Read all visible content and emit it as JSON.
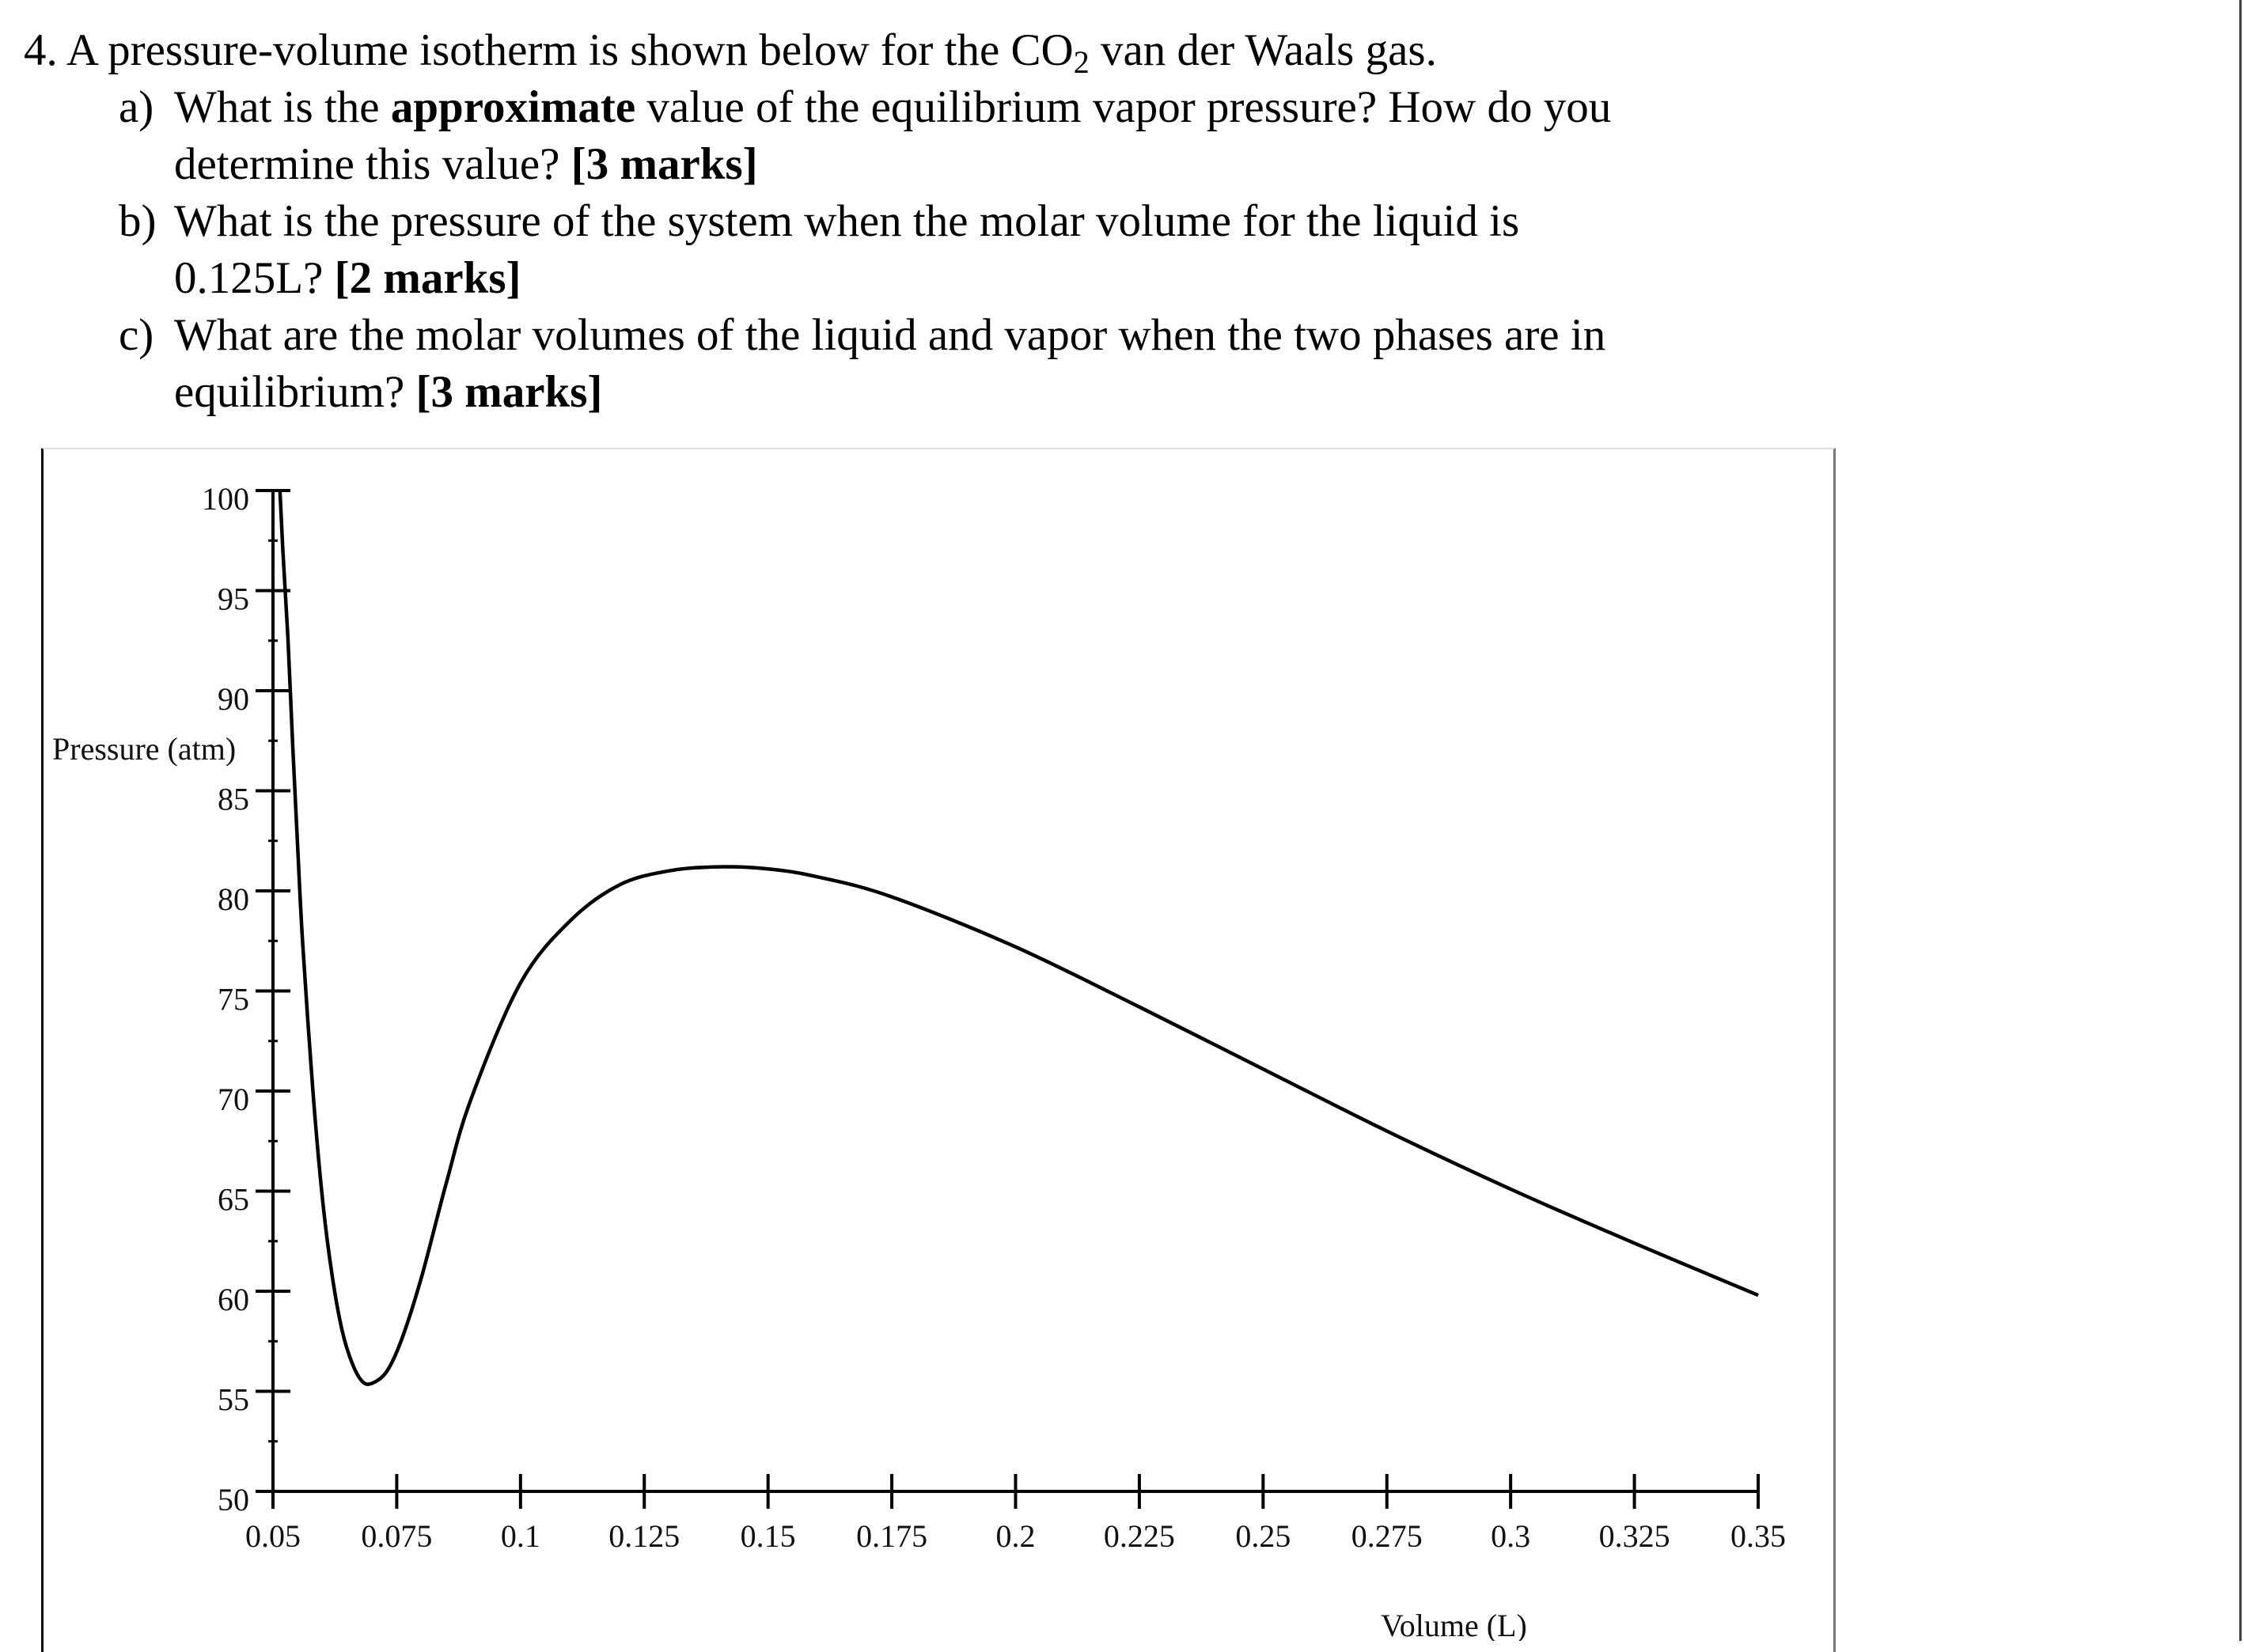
{
  "question": {
    "number": "4.",
    "intro_before_sub": "A pressure-volume isotherm is shown below for the CO",
    "intro_sub": "2",
    "intro_after_sub": " van der Waals gas.",
    "parts": [
      {
        "letter": "a)",
        "line1_text": "What is the ",
        "line1_bold": "approximate",
        "line1_rest": " value of the equilibrium vapor pressure? How do you",
        "line2_text": "determine this value? ",
        "line2_bold": "[3 marks]"
      },
      {
        "letter": "b)",
        "line1_text": "What is the pressure of the system when the molar volume for the liquid is",
        "line2_text": "0.125L? ",
        "line2_bold": "[2 marks]"
      },
      {
        "letter": "c)",
        "line1_text": "What are the molar volumes of the liquid and vapor when the two phases are in",
        "line2_text": "equilibrium? ",
        "line2_bold": "[3 marks]"
      }
    ]
  },
  "chart_data": {
    "type": "line",
    "xlabel": "Volume (L)",
    "ylabel": "Pressure (atm)",
    "xlim": [
      0.05,
      0.35
    ],
    "ylim": [
      50,
      100
    ],
    "x_ticks": [
      "0.05",
      "0.075",
      "0.1",
      "0.125",
      "0.15",
      "0.175",
      "0.2",
      "0.225",
      "0.25",
      "0.275",
      "0.3",
      "0.325",
      "0.35"
    ],
    "y_ticks": [
      "100",
      "95",
      "90",
      "85",
      "80",
      "75",
      "70",
      "65",
      "60",
      "55",
      "50"
    ],
    "grid": false,
    "series": [
      {
        "color": "#000000",
        "x": [
          0.0514,
          0.052,
          0.053,
          0.054,
          0.055,
          0.056,
          0.058,
          0.06,
          0.062,
          0.064,
          0.066,
          0.068,
          0.07,
          0.073,
          0.076,
          0.08,
          0.085,
          0.09,
          0.1,
          0.11,
          0.12,
          0.13,
          0.14,
          0.15,
          0.16,
          0.175,
          0.2,
          0.225,
          0.25,
          0.275,
          0.3,
          0.325,
          0.35
        ],
        "y": [
          100.0,
          97.0,
          92.7,
          87.2,
          82.1,
          77.4,
          70.2,
          64.6,
          60.7,
          58.0,
          56.4,
          55.5,
          55.4,
          56.0,
          57.6,
          60.7,
          65.4,
          69.6,
          75.4,
          78.5,
          80.3,
          81.0,
          81.2,
          81.1,
          80.7,
          79.7,
          77.2,
          74.2,
          71.1,
          68.0,
          65.1,
          62.4,
          59.8
        ]
      }
    ]
  }
}
